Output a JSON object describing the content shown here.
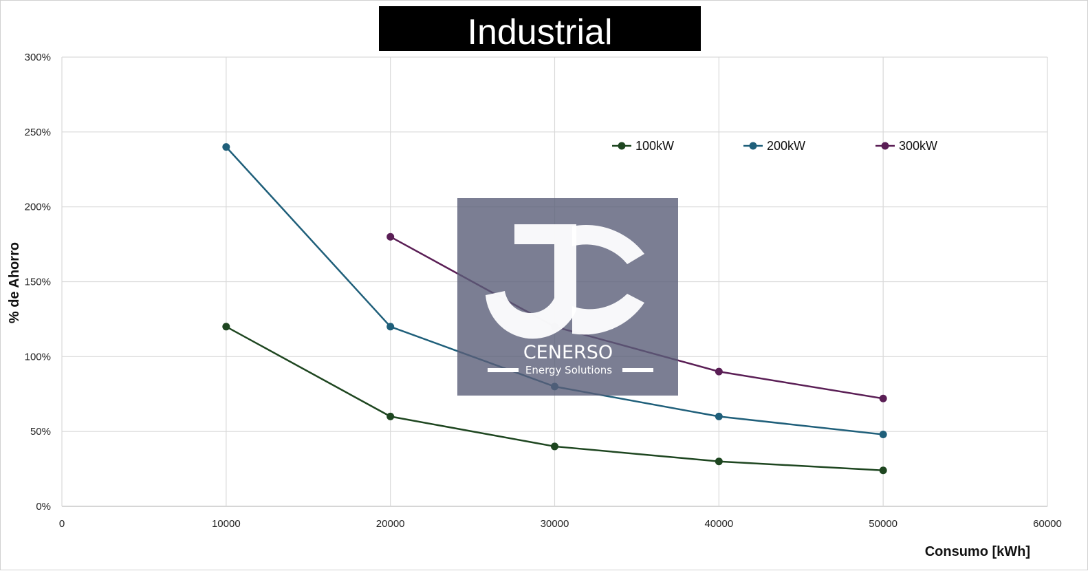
{
  "chart_data": {
    "type": "line",
    "title": "Industrial",
    "xlabel": "Consumo [kWh]",
    "ylabel": "% de Ahorro",
    "xlim": [
      0,
      60000
    ],
    "ylim": [
      0,
      300
    ],
    "xticks": [
      0,
      10000,
      20000,
      30000,
      40000,
      50000,
      60000
    ],
    "xtick_labels": [
      "0",
      "10000",
      "20000",
      "30000",
      "40000",
      "50000",
      "60000"
    ],
    "yticks": [
      0,
      50,
      100,
      150,
      200,
      250,
      300
    ],
    "ytick_labels": [
      "0%",
      "50%",
      "100%",
      "150%",
      "200%",
      "250%",
      "300%"
    ],
    "grid": true,
    "legend_position": "top-right",
    "series": [
      {
        "name": "100kW",
        "color": "#1e4620",
        "x": [
          10000,
          20000,
          30000,
          40000,
          50000
        ],
        "y": [
          120,
          60,
          40,
          30,
          24
        ]
      },
      {
        "name": "200kW",
        "color": "#1f5f7a",
        "x": [
          10000,
          20000,
          30000,
          40000,
          50000
        ],
        "y": [
          240,
          120,
          80,
          60,
          48
        ]
      },
      {
        "name": "300kW",
        "color": "#5a1e55",
        "x": [
          20000,
          30000,
          40000,
          50000
        ],
        "y": [
          180,
          120,
          90,
          72
        ]
      }
    ]
  },
  "watermark": {
    "brand": "CENERSO",
    "tagline": "Energy Solutions",
    "background_color": "#5a5e78"
  }
}
